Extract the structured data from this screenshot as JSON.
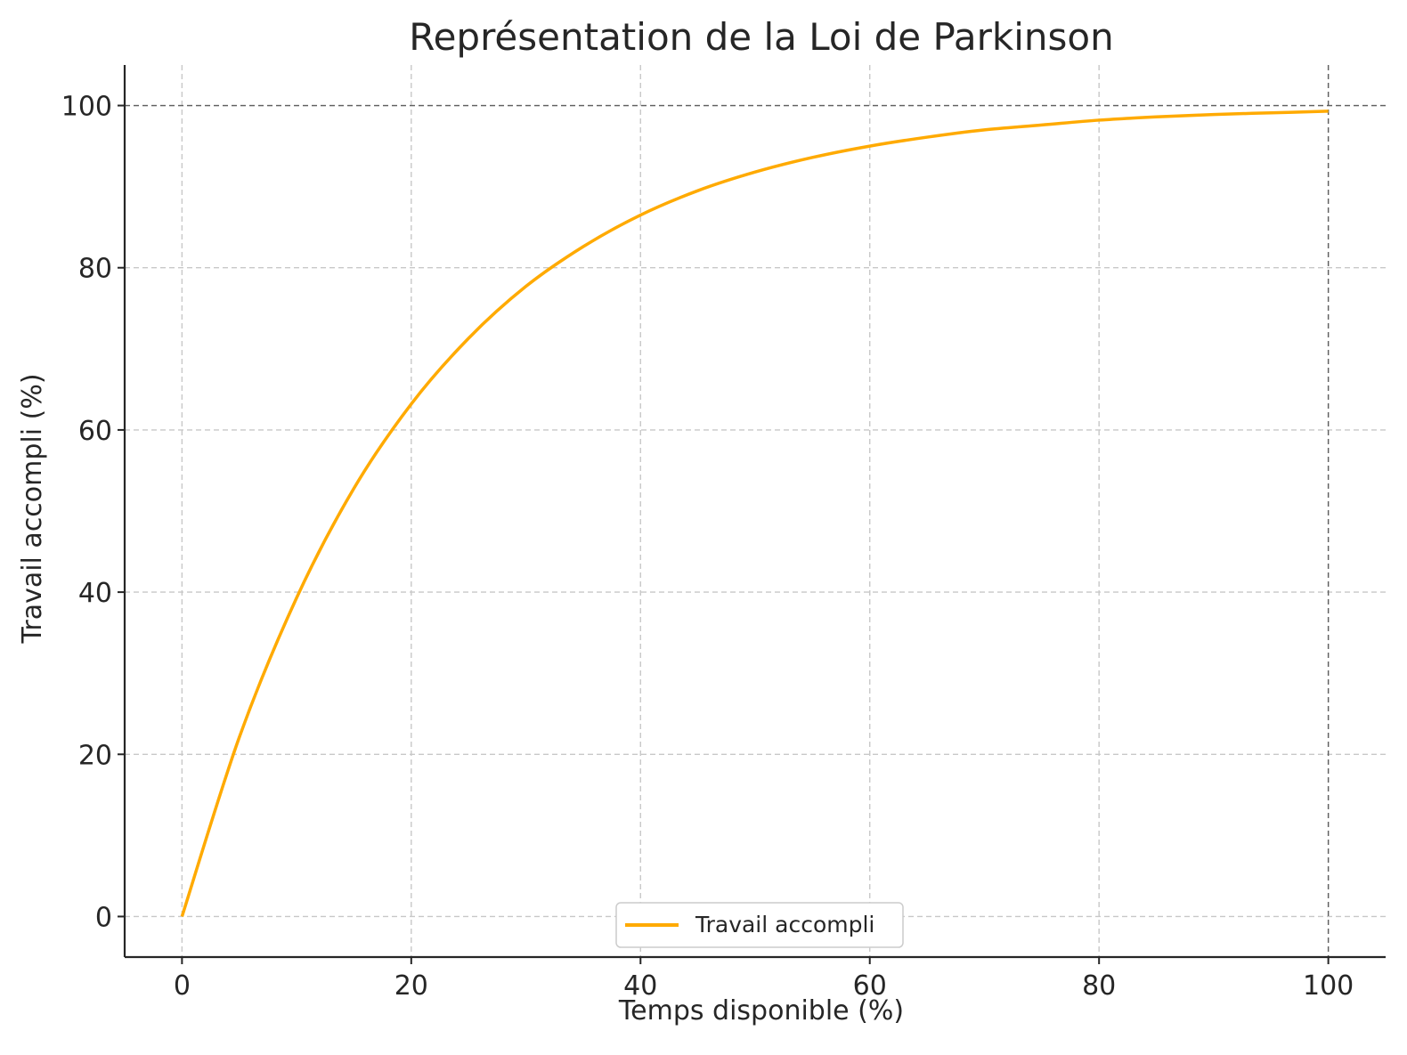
{
  "chart_data": {
    "type": "line",
    "title": "Représentation de la Loi de Parkinson",
    "xlabel": "Temps disponible (%)",
    "ylabel": "Travail accompli (%)",
    "xlim": [
      -5,
      105
    ],
    "ylim": [
      -5,
      105
    ],
    "xticks": [
      0,
      20,
      40,
      60,
      80,
      100
    ],
    "yticks": [
      0,
      20,
      40,
      60,
      80,
      100
    ],
    "grid": true,
    "legend_position": "bottom-center",
    "reference_lines": {
      "horizontal_y": 100,
      "vertical_x": 100
    },
    "series": [
      {
        "name": "Travail accompli",
        "color": "#ffaa00",
        "x": [
          0,
          5,
          10,
          15,
          20,
          25,
          30,
          35,
          40,
          45,
          50,
          55,
          60,
          65,
          70,
          75,
          80,
          85,
          90,
          95,
          100
        ],
        "y": [
          0,
          22.1,
          39.3,
          52.8,
          63.2,
          71.3,
          77.7,
          82.6,
          86.5,
          89.5,
          91.8,
          93.6,
          95.0,
          96.1,
          97.0,
          97.6,
          98.2,
          98.6,
          98.9,
          99.1,
          99.3
        ]
      }
    ]
  }
}
